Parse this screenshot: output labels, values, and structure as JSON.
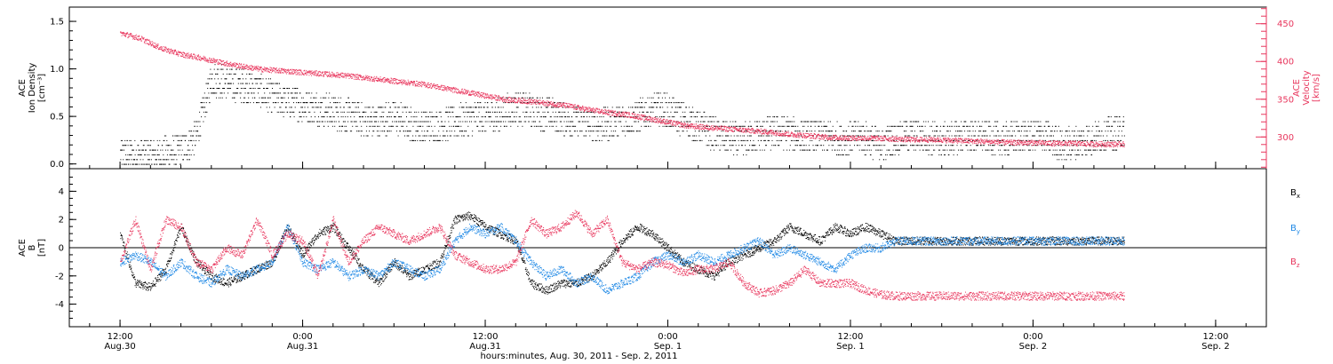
{
  "chart_data": [
    {
      "type": "scatter",
      "panel": "top",
      "ylabel_left_lines": [
        "ACE",
        "Ion Density",
        "[cm⁻³]"
      ],
      "ylabel_right_lines": [
        "ACE",
        "Velocity",
        "[km/s]"
      ],
      "ylim_left": [
        -0.05,
        1.65
      ],
      "ylim_right": [
        258,
        472
      ],
      "left_ticks": [
        {
          "v": 0.0,
          "label": "0.0"
        },
        {
          "v": 0.5,
          "label": "0.5"
        },
        {
          "v": 1.0,
          "label": "1.0"
        },
        {
          "v": 1.5,
          "label": "1.5"
        }
      ],
      "right_ticks": [
        {
          "v": 300,
          "label": "300"
        },
        {
          "v": 350,
          "label": "350"
        },
        {
          "v": 400,
          "label": "400"
        },
        {
          "v": 450,
          "label": "450"
        }
      ],
      "series": [
        {
          "axis": "left",
          "color": "#000000",
          "points": [
            [
              0,
              0.1
            ],
            [
              4,
              0.1
            ],
            [
              8,
              0.1
            ],
            [
              12,
              0.15
            ],
            [
              15,
              0.3
            ],
            [
              18,
              0.9
            ],
            [
              22,
              0.85
            ],
            [
              26,
              0.8
            ],
            [
              30,
              0.7
            ],
            [
              34,
              0.65
            ],
            [
              38,
              0.6
            ],
            [
              42,
              0.55
            ],
            [
              46,
              0.5
            ],
            [
              50,
              0.45
            ],
            [
              54,
              0.5
            ],
            [
              58,
              0.4
            ],
            [
              62,
              0.4
            ],
            [
              66,
              0.45
            ],
            [
              70,
              0.5
            ],
            [
              74,
              0.5
            ],
            [
              78,
              0.6
            ],
            [
              82,
              0.55
            ],
            [
              86,
              0.5
            ],
            [
              90,
              0.45
            ],
            [
              94,
              0.4
            ],
            [
              98,
              0.45
            ],
            [
              102,
              0.5
            ],
            [
              106,
              0.6
            ],
            [
              110,
              0.5
            ],
            [
              114,
              0.4
            ],
            [
              118,
              0.3
            ],
            [
              122,
              0.25
            ],
            [
              126,
              0.3
            ],
            [
              130,
              0.35
            ],
            [
              134,
              0.3
            ],
            [
              138,
              0.3
            ],
            [
              142,
              0.25
            ],
            [
              146,
              0.3
            ],
            [
              150,
              0.2
            ],
            [
              154,
              0.3
            ],
            [
              158,
              0.3
            ],
            [
              162,
              0.25
            ],
            [
              166,
              0.3
            ],
            [
              170,
              0.3
            ],
            [
              174,
              0.25
            ],
            [
              178,
              0.3
            ],
            [
              182,
              0.3
            ],
            [
              186,
              0.2
            ],
            [
              190,
              0.25
            ],
            [
              194,
              0.3
            ],
            [
              198,
              0.35
            ]
          ]
        },
        {
          "axis": "right",
          "color": "#e8365d",
          "points": [
            [
              0,
              438
            ],
            [
              4,
              431
            ],
            [
              8,
              418
            ],
            [
              12,
              410
            ],
            [
              16,
              405
            ],
            [
              20,
              399
            ],
            [
              24,
              394
            ],
            [
              28,
              390
            ],
            [
              32,
              388
            ],
            [
              36,
              386
            ],
            [
              40,
              384
            ],
            [
              44,
              382
            ],
            [
              48,
              379
            ],
            [
              52,
              376
            ],
            [
              56,
              373
            ],
            [
              60,
              370
            ],
            [
              64,
              365
            ],
            [
              68,
              360
            ],
            [
              72,
              355
            ],
            [
              76,
              350
            ],
            [
              80,
              348
            ],
            [
              84,
              345
            ],
            [
              88,
              342
            ],
            [
              92,
              337
            ],
            [
              96,
              333
            ],
            [
              100,
              330
            ],
            [
              104,
              325
            ],
            [
              108,
              320
            ],
            [
              112,
              315
            ],
            [
              116,
              313
            ],
            [
              120,
              311
            ],
            [
              124,
              309
            ],
            [
              128,
              307
            ],
            [
              132,
              304
            ],
            [
              136,
              302
            ],
            [
              140,
              300
            ],
            [
              144,
              299
            ],
            [
              148,
              299
            ],
            [
              152,
              298
            ],
            [
              156,
              297
            ],
            [
              160,
              297
            ],
            [
              164,
              296
            ],
            [
              168,
              295
            ],
            [
              172,
              294
            ],
            [
              176,
              293
            ],
            [
              180,
              293
            ],
            [
              184,
              292
            ],
            [
              188,
              292
            ],
            [
              192,
              291
            ],
            [
              196,
              291
            ]
          ]
        }
      ]
    },
    {
      "type": "scatter",
      "panel": "bottom",
      "ylabel_left_lines": [
        "ACE",
        "B",
        "[nT]"
      ],
      "ylim": [
        -5.6,
        5.6
      ],
      "left_ticks": [
        {
          "v": -4,
          "label": "-4"
        },
        {
          "v": -2,
          "label": "-2"
        },
        {
          "v": 0,
          "label": "0"
        },
        {
          "v": 2,
          "label": "2"
        },
        {
          "v": 4,
          "label": "4"
        }
      ],
      "legend": [
        {
          "name": "B",
          "sub": "x",
          "color": "#000000"
        },
        {
          "name": "B",
          "sub": "y",
          "color": "#1e88e5"
        },
        {
          "name": "B",
          "sub": "z",
          "color": "#e8365d"
        }
      ],
      "series": [
        {
          "name": "Bx",
          "color": "#000000",
          "points": [
            [
              0,
              1
            ],
            [
              3,
              -2.5
            ],
            [
              6,
              -2.8
            ],
            [
              9,
              -1.5
            ],
            [
              12,
              1.5
            ],
            [
              15,
              -1
            ],
            [
              18,
              -2
            ],
            [
              21,
              -2.5
            ],
            [
              24,
              -2
            ],
            [
              27,
              -1.5
            ],
            [
              30,
              -1
            ],
            [
              33,
              1.5
            ],
            [
              36,
              -0.5
            ],
            [
              39,
              1
            ],
            [
              42,
              1.5
            ],
            [
              45,
              0
            ],
            [
              48,
              -1.5
            ],
            [
              51,
              -2.5
            ],
            [
              54,
              -1
            ],
            [
              57,
              -2
            ],
            [
              60,
              -1.5
            ],
            [
              63,
              -1
            ],
            [
              66,
              2
            ],
            [
              69,
              2.3
            ],
            [
              72,
              1.5
            ],
            [
              75,
              1
            ],
            [
              78,
              0.5
            ],
            [
              81,
              -2.5
            ],
            [
              84,
              -3
            ],
            [
              87,
              -2.5
            ],
            [
              90,
              -2.5
            ],
            [
              93,
              -2
            ],
            [
              96,
              -1
            ],
            [
              99,
              0.5
            ],
            [
              102,
              1.5
            ],
            [
              105,
              1
            ],
            [
              108,
              0
            ],
            [
              111,
              -1
            ],
            [
              114,
              -1.5
            ],
            [
              117,
              -2
            ],
            [
              120,
              -1
            ],
            [
              123,
              -0.5
            ],
            [
              126,
              0
            ],
            [
              129,
              0.5
            ],
            [
              132,
              1.5
            ],
            [
              135,
              1
            ],
            [
              138,
              0.5
            ],
            [
              141,
              1.5
            ],
            [
              144,
              1
            ],
            [
              147,
              1.5
            ],
            [
              150,
              1
            ],
            [
              153,
              0.5
            ]
          ]
        },
        {
          "name": "By",
          "color": "#1e88e5",
          "points": [
            [
              0,
              -1
            ],
            [
              3,
              -0.5
            ],
            [
              6,
              -1
            ],
            [
              9,
              -2
            ],
            [
              12,
              -1
            ],
            [
              15,
              -2
            ],
            [
              18,
              -2.5
            ],
            [
              21,
              -1.5
            ],
            [
              24,
              -2
            ],
            [
              27,
              -1.5
            ],
            [
              30,
              -1
            ],
            [
              33,
              1.5
            ],
            [
              36,
              -1
            ],
            [
              39,
              -1.5
            ],
            [
              42,
              -1
            ],
            [
              45,
              -2
            ],
            [
              48,
              -1.5
            ],
            [
              51,
              -2
            ],
            [
              54,
              -1
            ],
            [
              57,
              -1.5
            ],
            [
              60,
              -2
            ],
            [
              63,
              -1.5
            ],
            [
              66,
              0.5
            ],
            [
              69,
              1.5
            ],
            [
              72,
              1
            ],
            [
              75,
              1.5
            ],
            [
              78,
              0.5
            ],
            [
              81,
              -1
            ],
            [
              84,
              -2
            ],
            [
              87,
              -1.5
            ],
            [
              90,
              -2.5
            ],
            [
              93,
              -2
            ],
            [
              96,
              -3
            ],
            [
              99,
              -2.5
            ],
            [
              102,
              -2
            ],
            [
              105,
              -1
            ],
            [
              108,
              -0.5
            ],
            [
              111,
              -1
            ],
            [
              114,
              -0.5
            ],
            [
              117,
              -1
            ],
            [
              120,
              -0.5
            ],
            [
              123,
              0
            ],
            [
              126,
              0.5
            ],
            [
              129,
              -0.5
            ],
            [
              132,
              0
            ],
            [
              135,
              -0.5
            ],
            [
              138,
              -1
            ],
            [
              141,
              -1.5
            ],
            [
              144,
              -0.5
            ],
            [
              147,
              0
            ],
            [
              150,
              0
            ],
            [
              153,
              0.5
            ]
          ]
        },
        {
          "name": "Bz",
          "color": "#e8365d",
          "points": [
            [
              0,
              -1
            ],
            [
              3,
              2
            ],
            [
              6,
              -1.5
            ],
            [
              9,
              2
            ],
            [
              12,
              1.5
            ],
            [
              15,
              -1
            ],
            [
              18,
              -1.5
            ],
            [
              21,
              0
            ],
            [
              24,
              -0.5
            ],
            [
              27,
              2
            ],
            [
              30,
              -0.5
            ],
            [
              33,
              1
            ],
            [
              36,
              0.5
            ],
            [
              39,
              -2
            ],
            [
              42,
              2
            ],
            [
              45,
              -1
            ],
            [
              48,
              0.5
            ],
            [
              51,
              1.5
            ],
            [
              54,
              1
            ],
            [
              57,
              0.5
            ],
            [
              60,
              1
            ],
            [
              63,
              1.5
            ],
            [
              66,
              -0.5
            ],
            [
              69,
              -1
            ],
            [
              72,
              -1.5
            ],
            [
              75,
              -1.5
            ],
            [
              78,
              -1
            ],
            [
              81,
              2
            ],
            [
              84,
              1
            ],
            [
              87,
              1.5
            ],
            [
              90,
              2.5
            ],
            [
              93,
              1
            ],
            [
              96,
              2
            ],
            [
              99,
              -1
            ],
            [
              102,
              -1.5
            ],
            [
              105,
              -1
            ],
            [
              108,
              -1.2
            ],
            [
              111,
              -1.8
            ],
            [
              114,
              -1.5
            ],
            [
              117,
              -1.5
            ],
            [
              120,
              -1
            ],
            [
              123,
              -2.5
            ],
            [
              126,
              -3.2
            ],
            [
              129,
              -3
            ],
            [
              132,
              -2.5
            ],
            [
              135,
              -1.5
            ],
            [
              138,
              -2.5
            ],
            [
              141,
              -2.5
            ],
            [
              144,
              -2.5
            ],
            [
              147,
              -3
            ],
            [
              150,
              -3.3
            ],
            [
              153,
              -3.4
            ]
          ]
        }
      ]
    }
  ],
  "time_axis": {
    "xlim_hours": [
      -10,
      226
    ],
    "data_end_hours": 198,
    "xlabel": "hours:minutes, Aug. 30, 2011 - Sep. 2, 2011",
    "ticks": [
      {
        "h": 0,
        "t": "12:00",
        "d": "Aug.30"
      },
      {
        "h": 36,
        "t": "0:00",
        "d": "Aug.31"
      },
      {
        "h": 72,
        "t": "12:00",
        "d": "Aug.31"
      },
      {
        "h": 108,
        "t": "0:00",
        "d": "Sep. 1"
      },
      {
        "h": 144,
        "t": "12:00",
        "d": "Sep. 1"
      },
      {
        "h": 180,
        "t": "0:00",
        "d": "Sep. 2"
      },
      {
        "h": 216,
        "t": "12:00",
        "d": "Sep. 2"
      }
    ]
  }
}
